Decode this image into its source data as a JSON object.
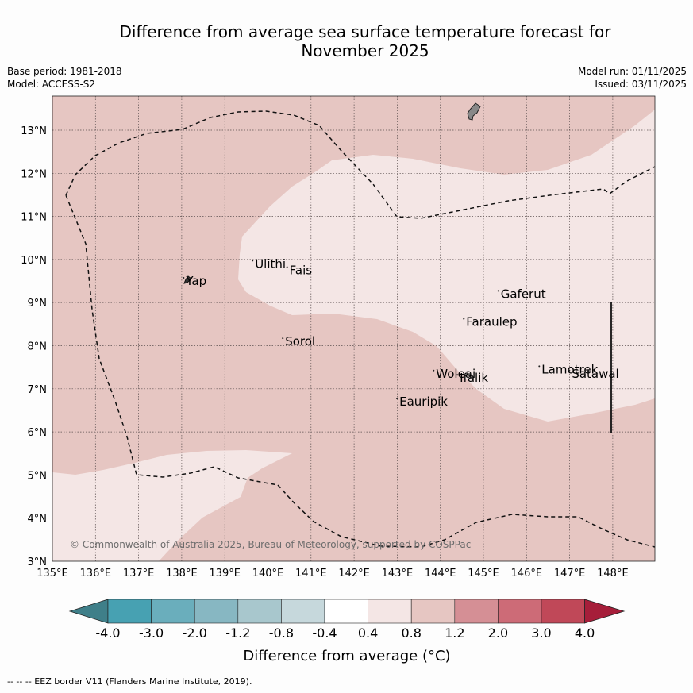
{
  "header": {
    "title_line1": "Difference from average sea surface temperature forecast for",
    "title_line2": "November 2025",
    "base_period": "Base period: 1981-2018",
    "model": "Model: ACCESS-S2",
    "model_run": "Model run: 01/11/2025",
    "issued": "Issued: 03/11/2025"
  },
  "map": {
    "lon_range": [
      135,
      149
    ],
    "lat_range": [
      3,
      13.8
    ],
    "x_ticks": [
      "135°E",
      "136°E",
      "137°E",
      "138°E",
      "139°E",
      "140°E",
      "141°E",
      "142°E",
      "143°E",
      "144°E",
      "145°E",
      "146°E",
      "147°E",
      "148°E"
    ],
    "y_ticks": [
      "3°N",
      "4°N",
      "5°N",
      "6°N",
      "7°N",
      "8°N",
      "9°N",
      "10°N",
      "11°N",
      "12°N",
      "13°N"
    ],
    "places": [
      {
        "name": "Yap",
        "lon": 138.1,
        "lat": 9.5
      },
      {
        "name": "Ulithi",
        "lon": 139.7,
        "lat": 9.9
      },
      {
        "name": "Fais",
        "lon": 140.5,
        "lat": 9.75
      },
      {
        "name": "Sorol",
        "lon": 140.4,
        "lat": 8.1
      },
      {
        "name": "Gaferut",
        "lon": 145.4,
        "lat": 9.2
      },
      {
        "name": "Faraulep",
        "lon": 144.6,
        "lat": 8.55
      },
      {
        "name": "Woleai",
        "lon": 143.9,
        "lat": 7.35
      },
      {
        "name": "Ifalik",
        "lon": 144.45,
        "lat": 7.25
      },
      {
        "name": "Lamotrek",
        "lon": 146.35,
        "lat": 7.45
      },
      {
        "name": "Satawal",
        "lon": 147.05,
        "lat": 7.35
      },
      {
        "name": "Eauripik",
        "lon": 143.05,
        "lat": 6.7
      }
    ],
    "copyright": "© Commonwealth of Australia 2025, Bureau of Meteorology, supported by COSPPac",
    "colors": {
      "anomaly_0_4_to_0_8": "#f4e6e5",
      "anomaly_0_8_to_1_2": "#e6c6c2",
      "land": "#888888"
    }
  },
  "colorbar": {
    "title": "Difference from average (°C)",
    "labels": [
      "-4.0",
      "-3.0",
      "-2.0",
      "-1.2",
      "-0.8",
      "-0.4",
      "0.4",
      "0.8",
      "1.2",
      "2.0",
      "3.0",
      "4.0"
    ],
    "colors": [
      "#3f7f89",
      "#47a1b2",
      "#6aaebc",
      "#87b7c2",
      "#a8c7cd",
      "#c6d8dc",
      "#ffffff",
      "#f4e6e5",
      "#e6c6c2",
      "#d58f95",
      "#cd6b77",
      "#c04858",
      "#a61e3a"
    ]
  },
  "footnote": "-- -- -- EEZ border V11 (Flanders Marine Institute, 2019)."
}
